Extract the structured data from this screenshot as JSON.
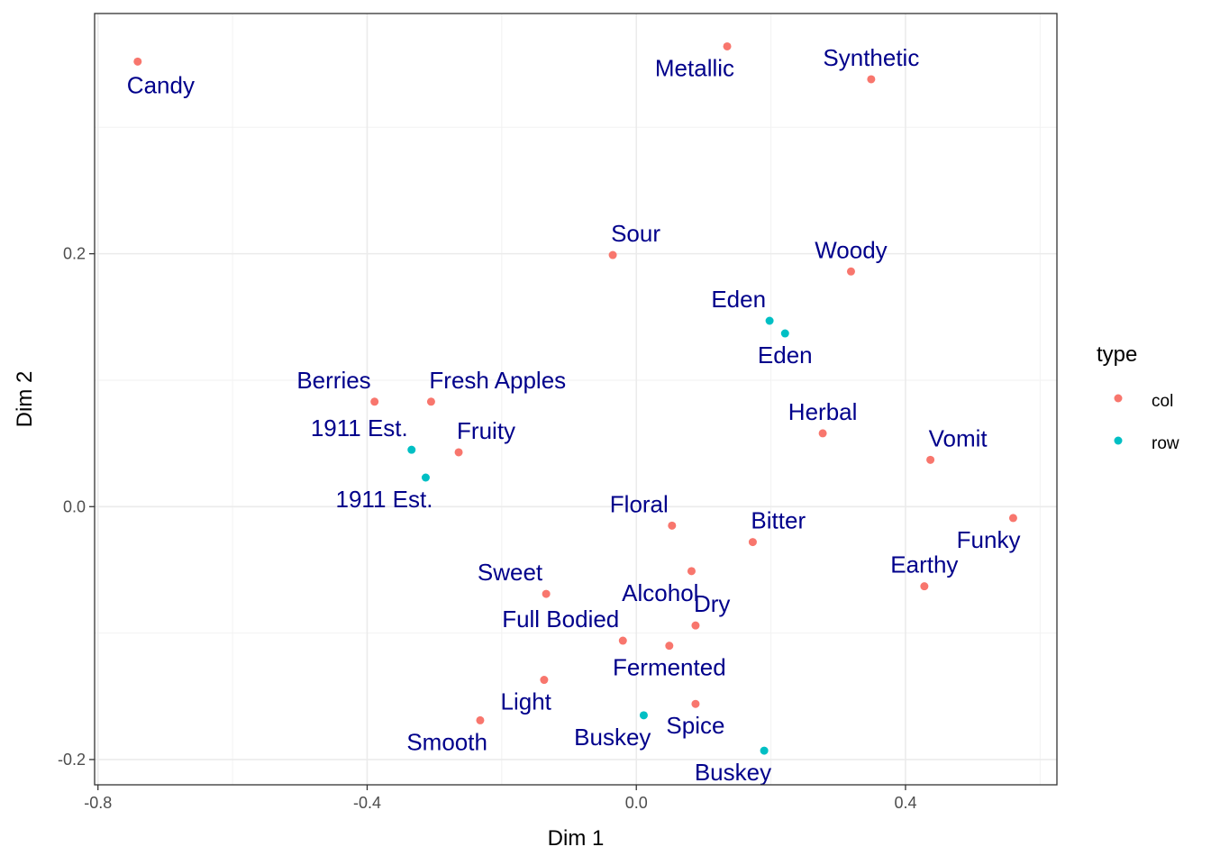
{
  "chart_data": {
    "type": "scatter",
    "xlabel": "Dim 1",
    "ylabel": "Dim 2",
    "xlim": [
      -0.805,
      0.625
    ],
    "ylim": [
      -0.22,
      0.39
    ],
    "xticks": [
      -0.8,
      -0.4,
      0.0,
      0.4
    ],
    "xtick_labels": [
      "-0.8",
      "-0.4",
      "0.0",
      "0.4"
    ],
    "yticks": [
      -0.2,
      0.0,
      0.2
    ],
    "ytick_labels": [
      "-0.2",
      "0.0",
      "0.2"
    ],
    "grid": true,
    "legend": {
      "title": "type",
      "position": "right",
      "entries": [
        {
          "name": "col",
          "color": "#F8766D"
        },
        {
          "name": "row",
          "color": "#00BFC4"
        }
      ]
    },
    "label_color": "#00008B",
    "points": [
      {
        "label": "Candy",
        "x": -0.741,
        "y": 0.352,
        "type": "col",
        "anchor": "below-right"
      },
      {
        "label": "Metallic",
        "x": 0.135,
        "y": 0.364,
        "type": "col",
        "anchor": "below-left"
      },
      {
        "label": "Synthetic",
        "x": 0.349,
        "y": 0.338,
        "type": "col",
        "anchor": "above"
      },
      {
        "label": "Sour",
        "x": -0.035,
        "y": 0.199,
        "type": "col",
        "anchor": "above-right"
      },
      {
        "label": "Woody",
        "x": 0.319,
        "y": 0.186,
        "type": "col",
        "anchor": "above"
      },
      {
        "label": "Eden",
        "x": 0.198,
        "y": 0.147,
        "type": "row",
        "anchor": "above-left"
      },
      {
        "label": "Eden",
        "x": 0.221,
        "y": 0.137,
        "type": "row",
        "anchor": "below"
      },
      {
        "label": "Berries",
        "x": -0.389,
        "y": 0.083,
        "type": "col",
        "anchor": "above-left"
      },
      {
        "label": "Fresh Apples",
        "x": -0.305,
        "y": 0.083,
        "type": "col",
        "anchor": "above-right"
      },
      {
        "label": "Herbal",
        "x": 0.277,
        "y": 0.058,
        "type": "col",
        "anchor": "above"
      },
      {
        "label": "1911 Est.",
        "x": -0.334,
        "y": 0.045,
        "type": "row",
        "anchor": "above-left"
      },
      {
        "label": "Fruity",
        "x": -0.264,
        "y": 0.043,
        "type": "col",
        "anchor": "above-right"
      },
      {
        "label": "Vomit",
        "x": 0.437,
        "y": 0.037,
        "type": "col",
        "anchor": "above-right"
      },
      {
        "label": "1911 Est.",
        "x": -0.313,
        "y": 0.023,
        "type": "row",
        "anchor": "below-left"
      },
      {
        "label": "Floral",
        "x": 0.053,
        "y": -0.015,
        "type": "col",
        "anchor": "above-left"
      },
      {
        "label": "Funky",
        "x": 0.56,
        "y": -0.009,
        "type": "col",
        "anchor": "below-left"
      },
      {
        "label": "Bitter",
        "x": 0.173,
        "y": -0.028,
        "type": "col",
        "anchor": "above-right"
      },
      {
        "label": "Alcohol",
        "x": 0.082,
        "y": -0.051,
        "type": "col",
        "anchor": "below-left"
      },
      {
        "label": "Earthy",
        "x": 0.428,
        "y": -0.063,
        "type": "col",
        "anchor": "above"
      },
      {
        "label": "Sweet",
        "x": -0.134,
        "y": -0.069,
        "type": "col",
        "anchor": "above-left"
      },
      {
        "label": "Dry",
        "x": 0.088,
        "y": -0.094,
        "type": "col",
        "anchor": "above-right"
      },
      {
        "label": "Full Bodied",
        "x": -0.02,
        "y": -0.106,
        "type": "col",
        "anchor": "above-left"
      },
      {
        "label": "Fermented",
        "x": 0.049,
        "y": -0.11,
        "type": "col",
        "anchor": "below"
      },
      {
        "label": "Light",
        "x": -0.137,
        "y": -0.137,
        "type": "col",
        "anchor": "below-left"
      },
      {
        "label": "Spice",
        "x": 0.088,
        "y": -0.156,
        "type": "col",
        "anchor": "below"
      },
      {
        "label": "Buskey",
        "x": 0.011,
        "y": -0.165,
        "type": "row",
        "anchor": "below-left"
      },
      {
        "label": "Smooth",
        "x": -0.232,
        "y": -0.169,
        "type": "col",
        "anchor": "below-left"
      },
      {
        "label": "Buskey",
        "x": 0.19,
        "y": -0.193,
        "type": "row",
        "anchor": "below-left"
      }
    ]
  }
}
